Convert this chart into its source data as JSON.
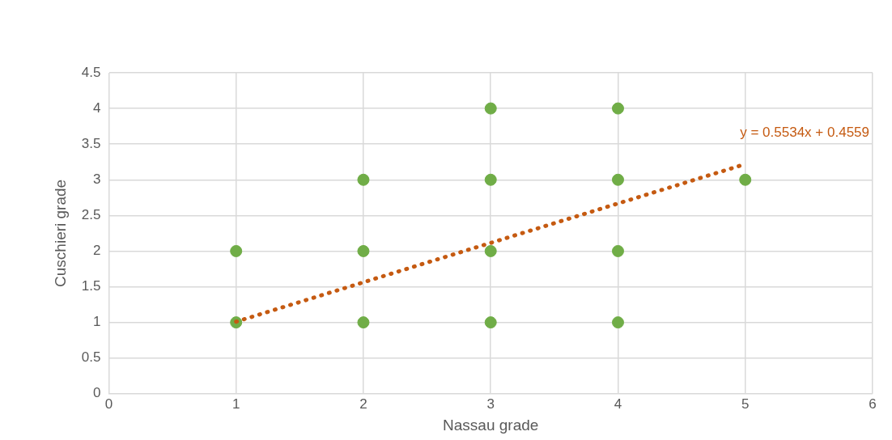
{
  "chart_data": {
    "type": "scatter",
    "xlabel": "Nassau grade",
    "ylabel": "Cuschieri grade",
    "xlim": [
      0,
      6
    ],
    "xticks": [
      0,
      1,
      2,
      3,
      4,
      5,
      6
    ],
    "ylim": [
      0,
      4.5
    ],
    "yticks": [
      0,
      0.5,
      1,
      1.5,
      2,
      2.5,
      3,
      3.5,
      4,
      4.5
    ],
    "grid": true,
    "legend": false,
    "marker": "circle",
    "series": [
      {
        "color": "#70ad47",
        "x": [
          1,
          1,
          2,
          2,
          2,
          3,
          3,
          3,
          3,
          4,
          4,
          4,
          4,
          5
        ],
        "values": [
          1,
          2,
          1,
          2,
          3,
          1,
          2,
          3,
          4,
          1,
          2,
          3,
          4,
          3
        ]
      },
      {
        "type": "line",
        "color": "#c55a11",
        "marker": "none",
        "line_style": "dotted",
        "x": [
          1,
          5
        ],
        "values": [
          1.01,
          3.22
        ]
      }
    ],
    "annotations": [
      "y = 0.5534x + 0.4559"
    ]
  }
}
